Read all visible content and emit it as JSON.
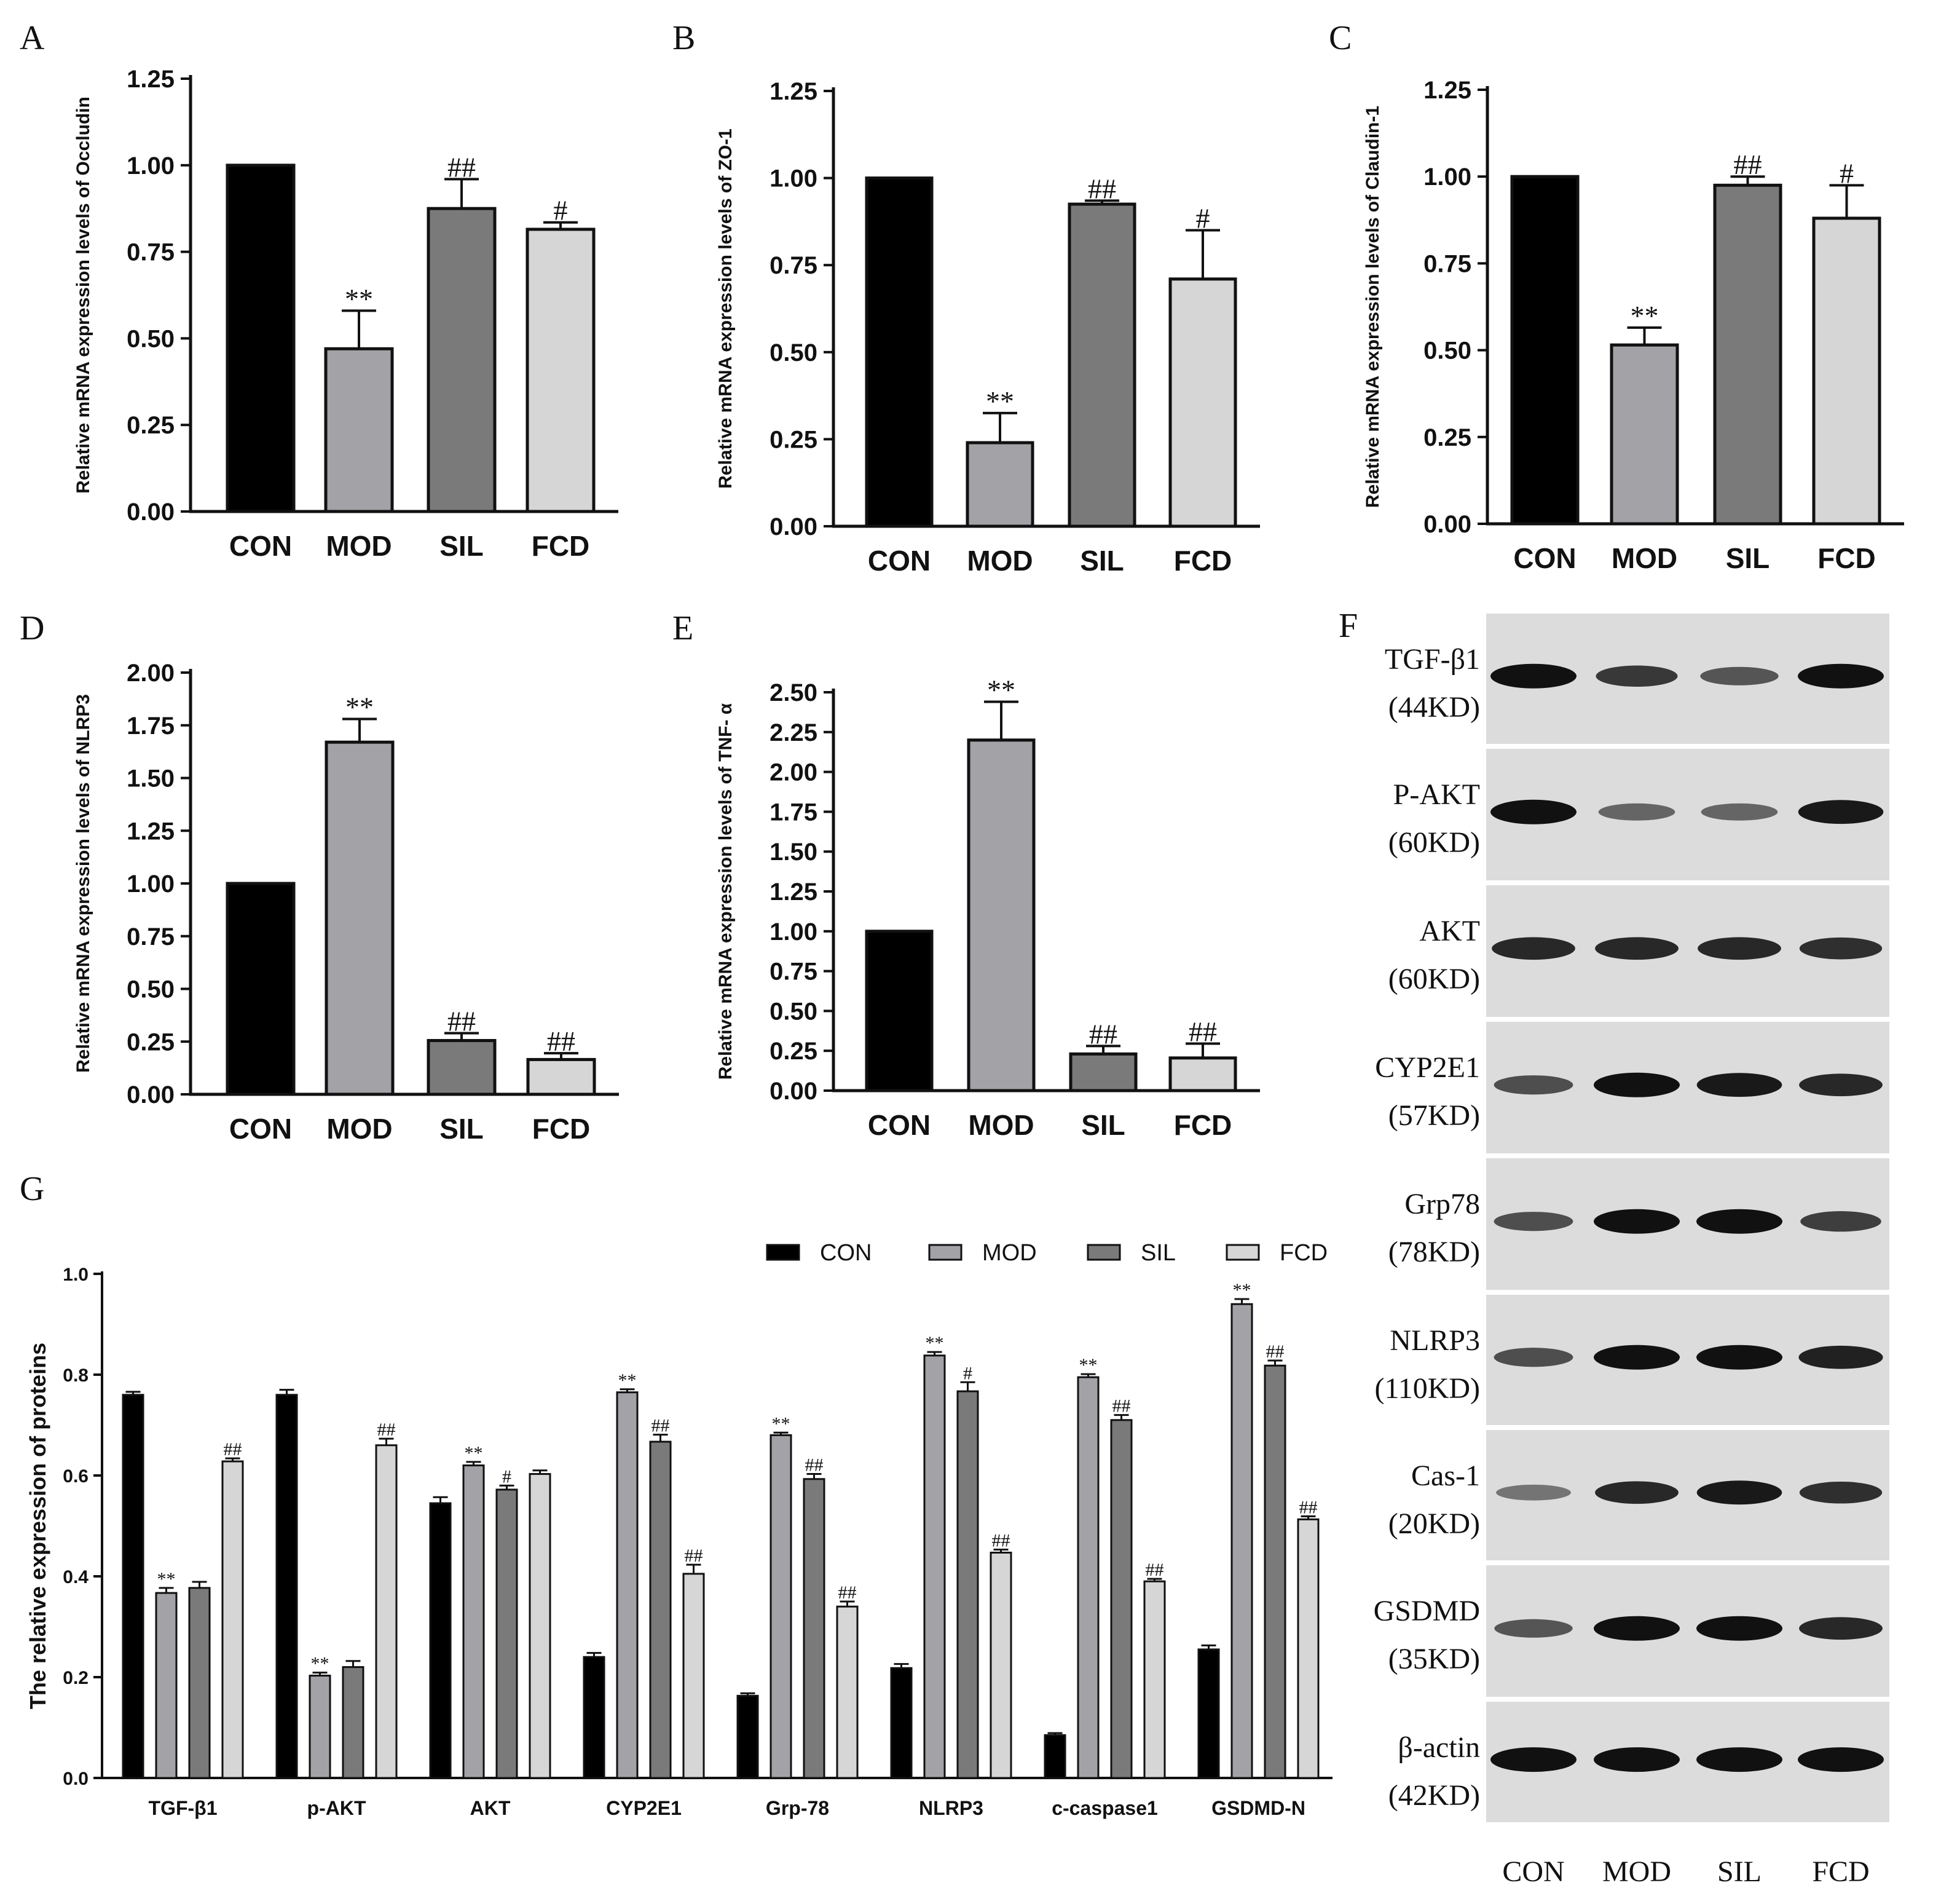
{
  "colors": {
    "CON": "#000000",
    "MOD": "#a2a2a7",
    "SIL": "#7a7a7a",
    "FCD": "#d6d6d6",
    "axis": "#111111",
    "blot_bg": "#dcdcdc",
    "band": "#111111"
  },
  "chart_data": [
    {
      "id": "A",
      "type": "bar",
      "letter": "A",
      "ylabel": "Relative mRNA expression levels of Occludin",
      "categories": [
        "CON",
        "MOD",
        "SIL",
        "FCD"
      ],
      "values": [
        1.0,
        0.47,
        0.875,
        0.815
      ],
      "errors": [
        0,
        0.11,
        0.085,
        0.02
      ],
      "annotations": [
        "",
        "**",
        "##",
        "#"
      ],
      "ylim": [
        0,
        1.25
      ],
      "yticks": [
        "0.00",
        "0.25",
        "0.50",
        "0.75",
        "1.00",
        "1.25"
      ]
    },
    {
      "id": "B",
      "type": "bar",
      "letter": "B",
      "ylabel": "Relative mRNA expression levels of ZO-1",
      "categories": [
        "CON",
        "MOD",
        "SIL",
        "FCD"
      ],
      "values": [
        1.0,
        0.24,
        0.925,
        0.71
      ],
      "errors": [
        0,
        0.085,
        0.01,
        0.14
      ],
      "annotations": [
        "",
        "**",
        "##",
        "#"
      ],
      "ylim": [
        0,
        1.25
      ],
      "yticks": [
        "0.00",
        "0.25",
        "0.50",
        "0.75",
        "1.00",
        "1.25"
      ]
    },
    {
      "id": "C",
      "type": "bar",
      "letter": "C",
      "ylabel": "Relative mRNA expression levels of Claudin-1",
      "categories": [
        "CON",
        "MOD",
        "SIL",
        "FCD"
      ],
      "values": [
        1.0,
        0.515,
        0.975,
        0.88
      ],
      "errors": [
        0,
        0.05,
        0.025,
        0.095
      ],
      "annotations": [
        "",
        "**",
        "##",
        "#"
      ],
      "ylim": [
        0,
        1.25
      ],
      "yticks": [
        "0.00",
        "0.25",
        "0.50",
        "0.75",
        "1.00",
        "1.25"
      ]
    },
    {
      "id": "D",
      "type": "bar",
      "letter": "D",
      "ylabel": "Relative mRNA expression levels of NLRP3",
      "categories": [
        "CON",
        "MOD",
        "SIL",
        "FCD"
      ],
      "values": [
        1.0,
        1.67,
        0.255,
        0.165
      ],
      "errors": [
        0,
        0.11,
        0.035,
        0.03
      ],
      "annotations": [
        "",
        "**",
        "##",
        "##"
      ],
      "ylim": [
        0,
        2.0
      ],
      "yticks": [
        "0.00",
        "0.25",
        "0.50",
        "0.75",
        "1.00",
        "1.25",
        "1.50",
        "1.75",
        "2.00"
      ]
    },
    {
      "id": "E",
      "type": "bar",
      "letter": "E",
      "ylabel": "Relative mRNA expression levels of TNF- α",
      "categories": [
        "CON",
        "MOD",
        "SIL",
        "FCD"
      ],
      "values": [
        1.0,
        2.2,
        0.23,
        0.205
      ],
      "errors": [
        0,
        0.24,
        0.05,
        0.09
      ],
      "annotations": [
        "",
        "**",
        "##",
        "##"
      ],
      "ylim": [
        0,
        2.5
      ],
      "yticks": [
        "0.00",
        "0.25",
        "0.50",
        "0.75",
        "1.00",
        "1.25",
        "1.50",
        "1.75",
        "2.00",
        "2.25",
        "2.50"
      ]
    },
    {
      "id": "G",
      "type": "bar",
      "letter": "G",
      "ylabel": "The relative expression of proteins",
      "categories": [
        "TGF-β1",
        "p-AKT",
        "AKT",
        "CYP2E1",
        "Grp-78",
        "NLRP3",
        "c-caspase1",
        "GSDMD-N"
      ],
      "ylim": [
        0,
        1.0
      ],
      "yticks": [
        "0.0",
        "0.2",
        "0.4",
        "0.6",
        "0.8",
        "1.0"
      ],
      "legend": [
        "CON",
        "MOD",
        "SIL",
        "FCD"
      ],
      "series": [
        {
          "name": "CON",
          "values": [
            0.76,
            0.76,
            0.545,
            0.24,
            0.163,
            0.218,
            0.085,
            0.255
          ],
          "errors": [
            0.006,
            0.01,
            0.012,
            0.008,
            0.005,
            0.008,
            0.004,
            0.008
          ],
          "annotations": [
            "",
            "",
            "",
            "",
            "",
            "",
            "",
            ""
          ]
        },
        {
          "name": "MOD",
          "values": [
            0.367,
            0.203,
            0.62,
            0.765,
            0.68,
            0.838,
            0.795,
            0.94
          ],
          "errors": [
            0.01,
            0.006,
            0.007,
            0.006,
            0.005,
            0.007,
            0.006,
            0.01
          ],
          "annotations": [
            "**",
            "**",
            "**",
            "**",
            "**",
            "**",
            "**",
            "**"
          ]
        },
        {
          "name": "SIL",
          "values": [
            0.377,
            0.22,
            0.572,
            0.667,
            0.593,
            0.767,
            0.71,
            0.818
          ],
          "errors": [
            0.012,
            0.012,
            0.008,
            0.014,
            0.01,
            0.018,
            0.01,
            0.01
          ],
          "annotations": [
            "",
            "",
            "#",
            "##",
            "##",
            "#",
            "##",
            "##"
          ]
        },
        {
          "name": "FCD",
          "values": [
            0.628,
            0.66,
            0.603,
            0.405,
            0.34,
            0.447,
            0.39,
            0.513
          ],
          "errors": [
            0.006,
            0.013,
            0.007,
            0.018,
            0.01,
            0.006,
            0.005,
            0.006
          ],
          "annotations": [
            "##",
            "##",
            "",
            "##",
            "##",
            "##",
            "##",
            "##"
          ]
        }
      ]
    }
  ],
  "western_blot": {
    "letter": "F",
    "columns": [
      "CON",
      "MOD",
      "SIL",
      "FCD"
    ],
    "proteins": [
      {
        "name": "TGF-β1",
        "kd": "(44KD)",
        "intensity": [
          1.0,
          0.75,
          0.55,
          1.0
        ]
      },
      {
        "name": "P-AKT",
        "kd": "(60KD)",
        "intensity": [
          1.0,
          0.45,
          0.45,
          0.95
        ]
      },
      {
        "name": "AKT",
        "kd": "(60KD)",
        "intensity": [
          0.85,
          0.85,
          0.85,
          0.8
        ]
      },
      {
        "name": "CYP2E1",
        "kd": "(57KD)",
        "intensity": [
          0.6,
          1.0,
          0.95,
          0.85
        ]
      },
      {
        "name": "Grp78",
        "kd": "(78KD)",
        "intensity": [
          0.6,
          1.0,
          1.0,
          0.7
        ]
      },
      {
        "name": "NLRP3",
        "kd": "(110KD)",
        "intensity": [
          0.6,
          1.0,
          1.0,
          0.9
        ]
      },
      {
        "name": "Cas-1",
        "kd": "(20KD)",
        "intensity": [
          0.35,
          0.85,
          0.95,
          0.8
        ]
      },
      {
        "name": "GSDMD",
        "kd": "(35KD)",
        "intensity": [
          0.55,
          1.0,
          1.0,
          0.85
        ]
      },
      {
        "name": "β-actin",
        "kd": "(42KD)",
        "intensity": [
          1.0,
          1.0,
          1.0,
          1.0
        ]
      }
    ]
  }
}
